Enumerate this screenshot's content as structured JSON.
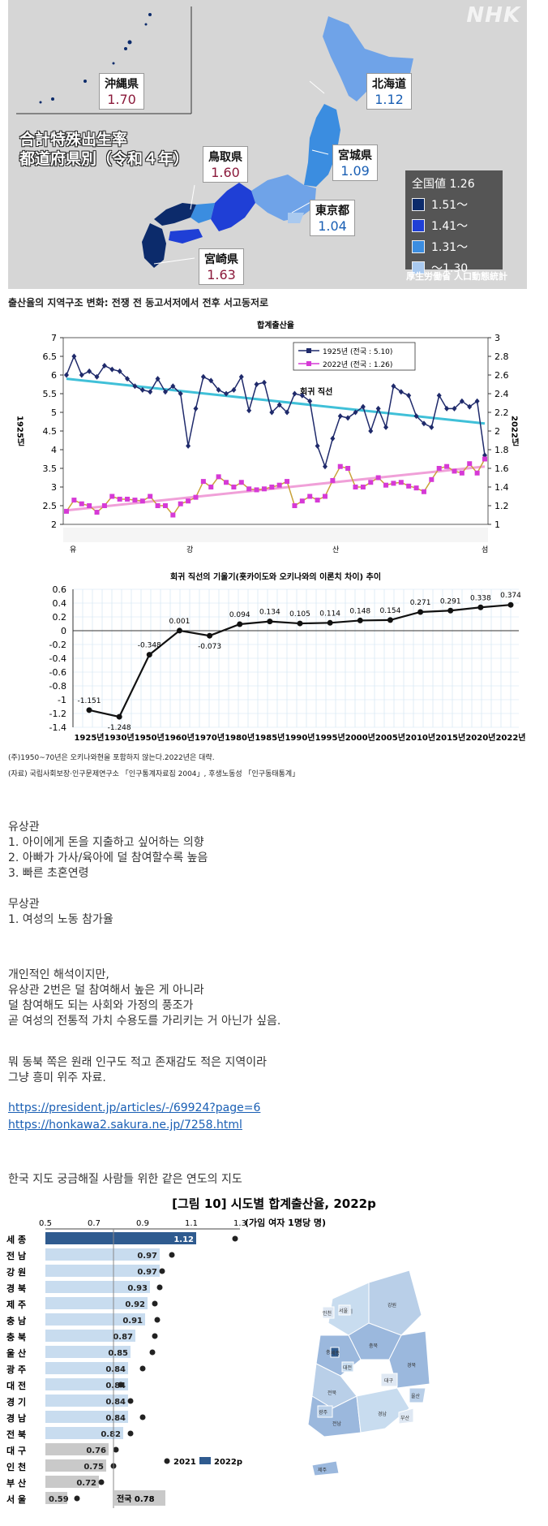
{
  "japan_map": {
    "watermark": "NHK",
    "title_line1": "合計特殊出生率",
    "title_line2": "都道府県別（令和４年）",
    "labels": [
      {
        "name": "沖縄県",
        "value": "1.70",
        "color": "#8b1a3b"
      },
      {
        "name": "北海道",
        "value": "1.12",
        "color": "#1a5fb4"
      },
      {
        "name": "鳥取県",
        "value": "1.60",
        "color": "#8b1a3b"
      },
      {
        "name": "宮城県",
        "value": "1.09",
        "color": "#1a5fb4"
      },
      {
        "name": "東京都",
        "value": "1.04",
        "color": "#1a5fb4"
      },
      {
        "name": "宮崎県",
        "value": "1.63",
        "color": "#8b1a3b"
      }
    ],
    "legend": {
      "header": "全国値 1.26",
      "items": [
        {
          "label": "1.51～",
          "color": "#0c2b6b"
        },
        {
          "label": "1.41～",
          "color": "#1f3fd6"
        },
        {
          "label": "1.31～",
          "color": "#3b8de0"
        },
        {
          "label": "～1.30",
          "color": "#a9c9ef"
        }
      ]
    },
    "source": "厚生労働省 人口動態統計"
  },
  "section_heading": "출산율의 지역구조 변화: 전쟁 전 동고서저에서 전후 서고동저로",
  "chart_data": [
    {
      "type": "line",
      "title": "합계출산율",
      "left_axis_label": "1925년",
      "right_axis_label": "2022년",
      "x_labels_bottom": [
        "유",
        "강",
        "산",
        "섬"
      ],
      "series": [
        {
          "name": "1925년 (전국 : 5.10)",
          "color": "#1f2a6b",
          "axis": "left",
          "values": [
            6.0,
            6.5,
            6.0,
            6.1,
            5.95,
            6.25,
            6.15,
            6.1,
            5.9,
            5.7,
            5.6,
            5.55,
            5.9,
            5.55,
            5.7,
            5.5,
            4.1,
            5.1,
            5.95,
            5.85,
            5.6,
            5.5,
            5.6,
            5.95,
            5.05,
            5.75,
            5.8,
            5.0,
            5.2,
            5.0,
            5.5,
            5.45,
            5.3,
            4.1,
            3.55,
            4.3,
            4.9,
            4.85,
            5.0,
            5.15,
            4.5,
            5.1,
            4.6,
            5.7,
            5.55,
            5.45,
            4.9,
            4.7,
            4.6,
            5.45,
            5.1,
            5.1,
            5.3,
            5.15,
            5.3,
            3.85
          ]
        },
        {
          "name": "2022년 (전국 : 1.26)",
          "color": "#d63ad6",
          "axis": "right",
          "values": [
            1.14,
            1.26,
            1.22,
            1.2,
            1.13,
            1.2,
            1.3,
            1.27,
            1.27,
            1.26,
            1.25,
            1.3,
            1.2,
            1.2,
            1.1,
            1.22,
            1.25,
            1.29,
            1.46,
            1.4,
            1.51,
            1.45,
            1.4,
            1.45,
            1.38,
            1.37,
            1.38,
            1.4,
            1.42,
            1.46,
            1.2,
            1.25,
            1.3,
            1.26,
            1.3,
            1.47,
            1.62,
            1.6,
            1.4,
            1.4,
            1.45,
            1.5,
            1.42,
            1.44,
            1.45,
            1.41,
            1.39,
            1.35,
            1.48,
            1.6,
            1.62,
            1.57,
            1.55,
            1.65,
            1.55,
            1.7
          ]
        }
      ],
      "regression_label": "회귀 직선",
      "regression_1925": {
        "start": 5.9,
        "end": 4.7,
        "color": "#40c0d8"
      },
      "regression_2022": {
        "start": 1.15,
        "end": 1.62,
        "color": "#f0a0d8"
      },
      "left_ylim": [
        2,
        7
      ],
      "left_yticks": [
        2,
        2.5,
        3,
        3.5,
        4,
        4.5,
        5,
        5.5,
        6,
        6.5,
        7
      ],
      "right_ylim": [
        1,
        3
      ],
      "right_yticks": [
        1,
        1.2,
        1.4,
        1.6,
        1.8,
        2,
        2.2,
        2.4,
        2.6,
        2.8,
        3
      ]
    },
    {
      "type": "line",
      "title": "회귀 직선의 기울기(홋카이도와 오키나와의 이론치 차이) 추이",
      "categories": [
        "1925년",
        "1930년",
        "1950년",
        "1960년",
        "1970년",
        "1980년",
        "1985년",
        "1990년",
        "1995년",
        "2000년",
        "2005년",
        "2010년",
        "2015년",
        "2020년",
        "2022년"
      ],
      "values": [
        -1.151,
        -1.248,
        -0.348,
        0.001,
        -0.073,
        0.094,
        0.134,
        0.105,
        0.114,
        0.148,
        0.154,
        0.271,
        0.291,
        0.338,
        0.374
      ],
      "value_labels": [
        "-1.151",
        "-1.248",
        "-0.348",
        "0.001",
        "-0.073",
        "0.094",
        "0.134",
        "0.105",
        "0.114",
        "0.148",
        "0.154",
        "0.271",
        "0.291",
        "0.338",
        "0.374"
      ],
      "ylim": [
        -1.4,
        0.6
      ],
      "yticks": [
        "0.6",
        "0.4",
        "0.2",
        "0",
        "-0.2",
        "-0.4",
        "-0.6",
        "-0.8",
        "-1",
        "-1.2",
        "-1.4"
      ]
    },
    {
      "type": "bar",
      "title": "[그림 10] 시도별 합계출산율, 2022p",
      "unit": "(가임 여자 1명당 명)",
      "xticks": [
        "0.5",
        "0.7",
        "0.9",
        "1.1",
        "1.3"
      ],
      "xlim": [
        0.5,
        1.3
      ],
      "categories": [
        "세 종",
        "전 남",
        "강 원",
        "경 북",
        "제 주",
        "충 남",
        "충 북",
        "울 산",
        "광 주",
        "대 전",
        "경 기",
        "경 남",
        "전 북",
        "대 구",
        "인 천",
        "부 산",
        "서 울"
      ],
      "values_2022p": [
        1.12,
        0.97,
        0.97,
        0.93,
        0.92,
        0.91,
        0.87,
        0.85,
        0.84,
        0.84,
        0.84,
        0.84,
        0.82,
        0.76,
        0.75,
        0.72,
        0.59
      ],
      "value_labels": [
        "1.12",
        "0.97",
        "0.97",
        "0.93",
        "0.92",
        "0.91",
        "0.87",
        "0.85",
        "0.84",
        "0.84",
        "0.84",
        "0.84",
        "0.82",
        "0.76",
        "0.75",
        "0.72",
        "0.59"
      ],
      "values_2021": [
        1.28,
        1.02,
        0.98,
        0.97,
        0.95,
        0.96,
        0.95,
        0.94,
        0.9,
        0.81,
        0.85,
        0.9,
        0.85,
        0.79,
        0.78,
        0.73,
        0.63
      ],
      "national": {
        "label": "전국 0.78",
        "value": 0.78
      },
      "legend": [
        {
          "name": "2021",
          "color": "#222222"
        },
        {
          "name": "2022p",
          "color": "#2f5b8f"
        }
      ]
    }
  ],
  "notes": {
    "line1": "(주)1950~70년은 오키나와현을 포함하지 않는다.2022년은 대략.",
    "line2": "(자료) 국립사회보장·인구문제연구소 「인구통계자료집 2004」, 후생노동성 「인구동태통계」"
  },
  "text": {
    "corr_header": "유상관",
    "corr_items": [
      "1. 아이에게 돈을 지출하고 싶어하는 의향",
      "2. 아빠가 가사/육아에 덜 참여할수록 높음",
      "3. 빠른 초혼연령"
    ],
    "nocorr_header": "무상관",
    "nocorr_items": [
      "1. 여성의 노동 참가율"
    ],
    "opinion": [
      "개인적인 해석이지만,",
      "유상관 2번은 덜 참여해서 높은 게 아니라",
      "덜 참여해도 되는 사회와 가정의 풍조가",
      "곧 여성의 전통적 가치 수용도를 가리키는 거 아닌가 싶음."
    ],
    "aside": [
      "뭐 동북 쪽은 원래 인구도 적고 존재감도 적은 지역이라",
      "그냥 흥미 위주 자료."
    ],
    "links": [
      "https://president.jp/articles/-/69924?page=6",
      "https://honkawa2.sakura.ne.jp/7258.html"
    ],
    "korea_intro": "한국 지도 궁금해질 사람들 위한 같은 연도의 지도"
  },
  "korea_map": {
    "regions": [
      "강원",
      "경기",
      "충북",
      "충남",
      "경북",
      "전북",
      "전남",
      "경남",
      "대구",
      "울산",
      "부산",
      "광주",
      "세종",
      "대전",
      "서울",
      "인천",
      "제주"
    ]
  }
}
